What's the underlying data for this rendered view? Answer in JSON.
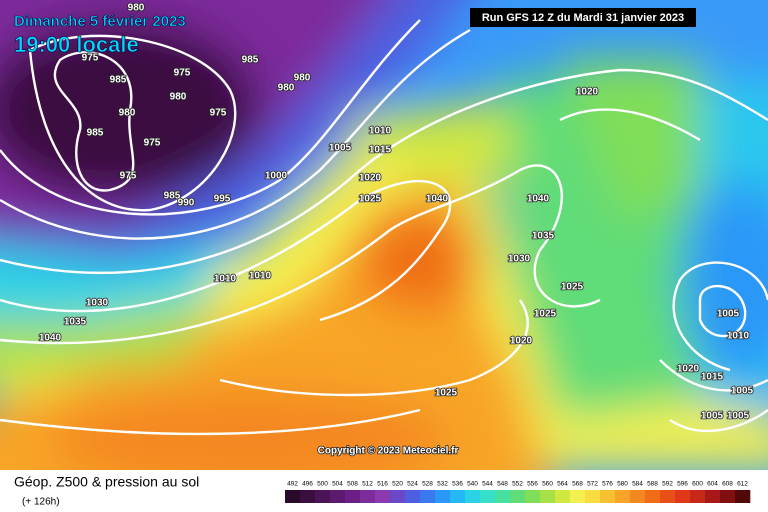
{
  "header": {
    "date": "Dimanche 5 février 2023",
    "time": "19:00 locale",
    "run": "Run GFS 12 Z du Mardi 31 janvier 2023"
  },
  "isobar_labels": [
    975,
    985,
    975,
    985,
    980,
    980,
    980,
    980,
    980,
    975,
    985,
    975,
    975,
    985,
    990,
    995,
    1000,
    1005,
    1010,
    1015,
    1020,
    1025,
    1040,
    1040,
    1035,
    1030,
    1025,
    1025,
    1020,
    1010,
    1010,
    1030,
    1035,
    1040,
    1020,
    1025,
    1005,
    1010,
    1020,
    1015,
    1005,
    1005,
    1005
  ],
  "copyright": "Copyright © 2023 Meteociel.fr",
  "footer": {
    "title": "Géop. Z500 & pression au sol",
    "lead": "(+ 126h)"
  },
  "colorbar": {
    "labels": [
      492,
      496,
      500,
      504,
      508,
      512,
      516,
      520,
      524,
      528,
      532,
      536,
      540,
      544,
      548,
      552,
      556,
      560,
      564,
      568,
      572,
      576,
      580,
      584,
      588,
      592,
      596,
      600,
      604,
      608,
      612
    ],
    "colors": [
      "#2a0a2a",
      "#3a0f3f",
      "#4b1457",
      "#5e1a6e",
      "#6c1f85",
      "#7d2c9c",
      "#8c3ab0",
      "#6a48c8",
      "#4d5ee0",
      "#3a78f0",
      "#2a98f8",
      "#24b8f5",
      "#2ad2e6",
      "#36e0c8",
      "#48e0a0",
      "#60dc78",
      "#80de58",
      "#a8e048",
      "#d0e840",
      "#f4f050",
      "#f8dc40",
      "#f8c030",
      "#f8a428",
      "#f48820",
      "#f06c18",
      "#e85018",
      "#e03818",
      "#c82818",
      "#a81818",
      "#801010",
      "#500808"
    ]
  }
}
